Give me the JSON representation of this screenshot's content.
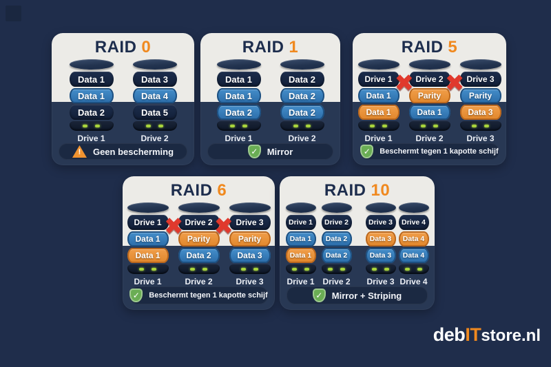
{
  "colors": {
    "background": "#1F2D4B",
    "card_light": "#ECEBE7",
    "card_dark": "#283854",
    "caption_pill": "#1B2942",
    "title_navy": "#1D2D4D",
    "accent_orange": "#F0891F",
    "band_blue": "#2E76B4",
    "band_orange": "#E8913A",
    "band_dark": "#16233E",
    "fail_red": "#E0392D",
    "check_green": "#6AAD54",
    "warning_orange": "#F09330",
    "led_green": "#A9D53C"
  },
  "icons": {
    "warning": "warning-icon",
    "check_shield": "shield-check-icon",
    "fail": "fail-x-icon"
  },
  "cards": [
    {
      "id": "raid0",
      "layout": "two-drive",
      "title": {
        "prefix": "RAID",
        "number": "0"
      },
      "drives": [
        {
          "label": "Drive 1",
          "bands": [
            {
              "text": "Data 1",
              "color": "dark"
            },
            {
              "text": "Data 1",
              "color": "blue"
            },
            {
              "text": "Data 2",
              "color": "dark"
            }
          ]
        },
        {
          "label": "Drive 2",
          "bands": [
            {
              "text": "Data 3",
              "color": "dark"
            },
            {
              "text": "Data 4",
              "color": "blue"
            },
            {
              "text": "Data 5",
              "color": "dark"
            }
          ]
        }
      ],
      "failed_links": [],
      "caption": {
        "icon": "warning",
        "text": "Geen bescherming"
      }
    },
    {
      "id": "raid1",
      "layout": "two-drive",
      "title": {
        "prefix": "RAID",
        "number": "1"
      },
      "drives": [
        {
          "label": "Drive 1",
          "bands": [
            {
              "text": "Data 1",
              "color": "dark"
            },
            {
              "text": "Data 1",
              "color": "blue"
            },
            {
              "text": "Data 2",
              "color": "blue"
            }
          ]
        },
        {
          "label": "Drive 2",
          "bands": [
            {
              "text": "Data 2",
              "color": "dark"
            },
            {
              "text": "Data 2",
              "color": "blue"
            },
            {
              "text": "Data 2",
              "color": "blue"
            }
          ]
        }
      ],
      "failed_links": [],
      "caption": {
        "icon": "check-shield",
        "text": "Mirror"
      }
    },
    {
      "id": "raid5",
      "layout": "three-drive",
      "title": {
        "prefix": "RAID",
        "number": "5"
      },
      "drives": [
        {
          "label": "Drive 1",
          "bands": [
            {
              "text": "Drive 1",
              "color": "dark"
            },
            {
              "text": "Data 1",
              "color": "blue"
            },
            {
              "text": "Data 1",
              "color": "orange"
            }
          ]
        },
        {
          "label": "Drive 2",
          "bands": [
            {
              "text": "Drive 2",
              "color": "dark"
            },
            {
              "text": "Parity",
              "color": "orange"
            },
            {
              "text": "Data 1",
              "color": "blue"
            }
          ]
        },
        {
          "label": "Drive 3",
          "bands": [
            {
              "text": "Drive 3",
              "color": "dark"
            },
            {
              "text": "Parity",
              "color": "blue"
            },
            {
              "text": "Data 3",
              "color": "orange"
            }
          ]
        }
      ],
      "failed_links": [
        1,
        2
      ],
      "caption": {
        "icon": "check-shield",
        "text": "Beschermt tegen 1 kapotte schijf"
      }
    },
    {
      "id": "raid6",
      "layout": "three-drive",
      "title": {
        "prefix": "RAID",
        "number": "6"
      },
      "drives": [
        {
          "label": "Drive 1",
          "bands": [
            {
              "text": "Drive 1",
              "color": "dark"
            },
            {
              "text": "Data 1",
              "color": "blue"
            },
            {
              "text": "Data 1",
              "color": "orange"
            }
          ]
        },
        {
          "label": "Drive 2",
          "bands": [
            {
              "text": "Drive 2",
              "color": "dark"
            },
            {
              "text": "Parity",
              "color": "orange"
            },
            {
              "text": "Data 2",
              "color": "blue"
            }
          ]
        },
        {
          "label": "Drive 3",
          "bands": [
            {
              "text": "Drive 3",
              "color": "dark"
            },
            {
              "text": "Parity",
              "color": "orange"
            },
            {
              "text": "Data 3",
              "color": "blue"
            }
          ]
        }
      ],
      "failed_links": [
        1,
        2
      ],
      "caption": {
        "icon": "check-shield",
        "text": "Beschermt tegen 1 kapotte schijf"
      }
    },
    {
      "id": "raid10",
      "layout": "four-drive",
      "title": {
        "prefix": "RAID",
        "number": "10"
      },
      "drives": [
        {
          "label": "Drive 1",
          "bands": [
            {
              "text": "Drive 1",
              "color": "dark"
            },
            {
              "text": "Data 1",
              "color": "blue"
            },
            {
              "text": "Data 1",
              "color": "orange"
            }
          ]
        },
        {
          "label": "Drive 2",
          "bands": [
            {
              "text": "Drive 2",
              "color": "dark"
            },
            {
              "text": "Data 2",
              "color": "blue"
            },
            {
              "text": "Data 2",
              "color": "blue"
            }
          ]
        },
        {
          "label": "Drive 3",
          "bands": [
            {
              "text": "Drive 3",
              "color": "dark"
            },
            {
              "text": "Data 3",
              "color": "orange"
            },
            {
              "text": "Data 3",
              "color": "blue"
            }
          ]
        },
        {
          "label": "Drive 4",
          "bands": [
            {
              "text": "Drive 4",
              "color": "dark"
            },
            {
              "text": "Data 4",
              "color": "orange"
            },
            {
              "text": "Data 4",
              "color": "blue"
            }
          ]
        }
      ],
      "failed_links": [],
      "caption": {
        "icon": "check-shield",
        "text": "Mirror + Striping"
      }
    }
  ],
  "glyphs": {
    "fail_x": "✖",
    "check": "✓",
    "exclamation": "!"
  },
  "logo": {
    "part1": "deb",
    "part2": "IT",
    "part3": "store.nl"
  }
}
